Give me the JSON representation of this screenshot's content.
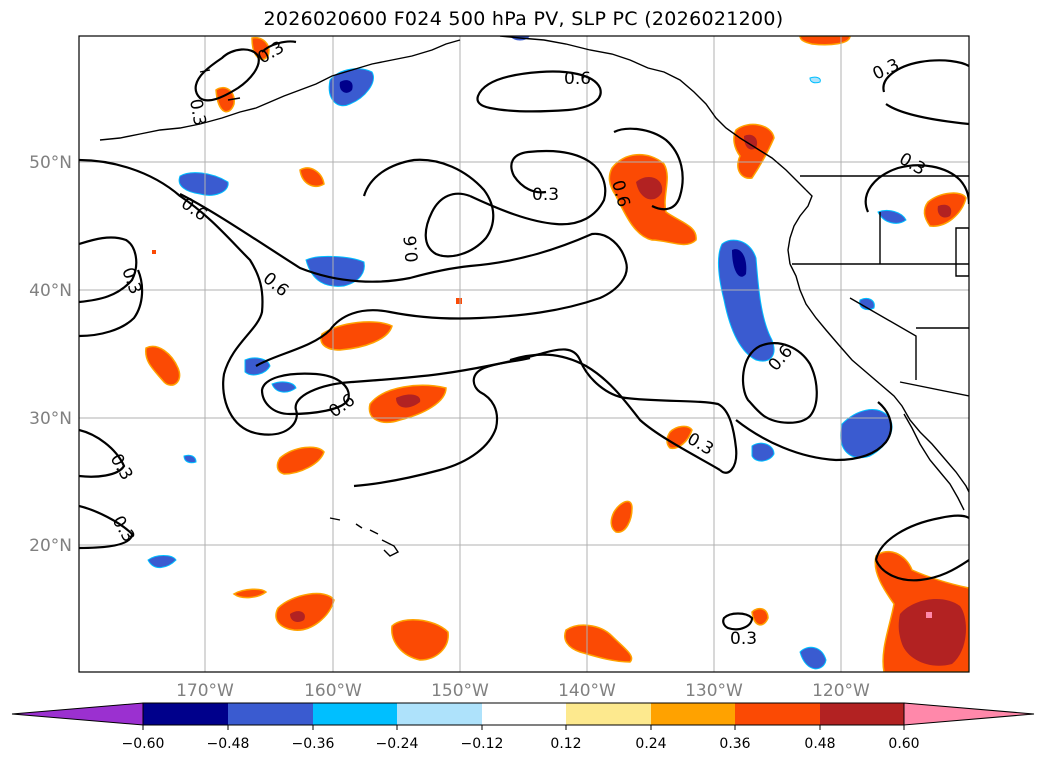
{
  "title": "2026020600 F024 500 hPa PV, SLP PC (2026021200)",
  "map": {
    "latitude_labels": [
      "50°N",
      "40°N",
      "30°N",
      "20°N"
    ],
    "longitude_labels": [
      "170°W",
      "160°W",
      "150°W",
      "140°W",
      "130°W",
      "120°W"
    ],
    "contour_labels": [
      "0.3",
      "0.3",
      "0.6",
      "0.3",
      "0.6",
      "0.6",
      "0.3",
      "0.3",
      "0.6",
      "0.6",
      "0.6",
      "0.6",
      "0.3",
      "0.3",
      "0.3",
      "0.3",
      "0.3"
    ]
  },
  "colorbar": {
    "ticks": [
      "−0.60",
      "−0.48",
      "−0.36",
      "−0.24",
      "−0.12",
      "0.12",
      "0.24",
      "0.36",
      "0.48",
      "0.60"
    ],
    "colors": [
      "#9b30d0",
      "#00008b",
      "#3a5bd0",
      "#00bfff",
      "#aee2fb",
      "#ffffff",
      "#fde98e",
      "#ffa200",
      "#fb4a04",
      "#b22222",
      "#ff88aa"
    ]
  },
  "colors": {
    "grid": "#b0b0b0",
    "coast": "#000000",
    "contour": "#000000"
  }
}
